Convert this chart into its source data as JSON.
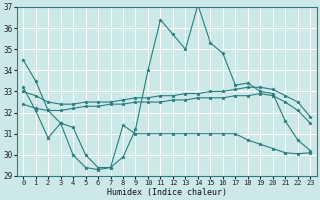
{
  "title": "",
  "xlabel": "Humidex (Indice chaleur)",
  "ylabel": "",
  "background_color": "#cde8e8",
  "grid_color": "#ffffff",
  "line_color": "#2a7d7d",
  "marker": "*",
  "xlim": [
    -0.5,
    23.5
  ],
  "ylim": [
    29,
    37
  ],
  "yticks": [
    29,
    30,
    31,
    32,
    33,
    34,
    35,
    36,
    37
  ],
  "xticks": [
    0,
    1,
    2,
    3,
    4,
    5,
    6,
    7,
    8,
    9,
    10,
    11,
    12,
    13,
    14,
    15,
    16,
    17,
    18,
    19,
    20,
    21,
    22,
    23
  ],
  "series": [
    {
      "x": [
        0,
        1,
        2,
        3,
        4,
        5,
        6,
        7,
        8,
        9,
        10,
        11,
        12,
        13,
        14,
        15,
        16,
        17,
        18,
        19,
        20,
        21,
        22,
        23
      ],
      "y": [
        34.5,
        33.5,
        32.1,
        31.5,
        31.3,
        30.0,
        29.4,
        29.4,
        29.9,
        31.2,
        34.0,
        36.4,
        35.7,
        35.0,
        37.1,
        35.3,
        34.8,
        33.3,
        33.4,
        33.0,
        32.9,
        31.6,
        30.7,
        30.2
      ]
    },
    {
      "x": [
        0,
        1,
        2,
        3,
        4,
        5,
        6,
        7,
        8,
        9,
        10,
        11,
        12,
        13,
        14,
        15,
        16,
        17,
        18,
        19,
        20,
        21,
        22,
        23
      ],
      "y": [
        33.0,
        32.8,
        32.5,
        32.4,
        32.4,
        32.5,
        32.5,
        32.5,
        32.6,
        32.7,
        32.7,
        32.8,
        32.8,
        32.9,
        32.9,
        33.0,
        33.0,
        33.1,
        33.2,
        33.2,
        33.1,
        32.8,
        32.5,
        31.8
      ]
    },
    {
      "x": [
        0,
        1,
        2,
        3,
        4,
        5,
        6,
        7,
        8,
        9,
        10,
        11,
        12,
        13,
        14,
        15,
        16,
        17,
        18,
        19,
        20,
        21,
        22,
        23
      ],
      "y": [
        32.4,
        32.2,
        32.1,
        32.1,
        32.2,
        32.3,
        32.3,
        32.4,
        32.4,
        32.5,
        32.5,
        32.5,
        32.6,
        32.6,
        32.7,
        32.7,
        32.7,
        32.8,
        32.8,
        32.9,
        32.8,
        32.5,
        32.1,
        31.5
      ]
    },
    {
      "x": [
        0,
        1,
        2,
        3,
        4,
        5,
        6,
        7,
        8,
        9,
        10,
        11,
        12,
        13,
        14,
        15,
        16,
        17,
        18,
        19,
        20,
        21,
        22,
        23
      ],
      "y": [
        33.2,
        32.1,
        30.8,
        31.5,
        30.0,
        29.4,
        29.3,
        29.4,
        31.4,
        31.0,
        31.0,
        31.0,
        31.0,
        31.0,
        31.0,
        31.0,
        31.0,
        31.0,
        30.7,
        30.5,
        30.3,
        30.1,
        30.05,
        30.1
      ]
    }
  ]
}
